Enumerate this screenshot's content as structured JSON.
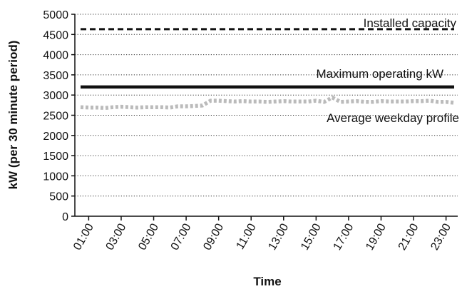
{
  "chart_data": {
    "type": "line",
    "title": "",
    "xlabel": "Time",
    "ylabel": "kW (per 30 minute period)",
    "ylim": [
      0,
      5000
    ],
    "yticks": [
      0,
      500,
      1000,
      1500,
      2000,
      2500,
      3000,
      3500,
      4000,
      4500,
      5000
    ],
    "xticks": [
      "01:00",
      "03:00",
      "05:00",
      "07:00",
      "09:00",
      "11:00",
      "13:00",
      "15:00",
      "17:00",
      "19:00",
      "21:00",
      "23:00"
    ],
    "x": [
      "00:30",
      "01:00",
      "01:30",
      "02:00",
      "02:30",
      "03:00",
      "03:30",
      "04:00",
      "04:30",
      "05:00",
      "05:30",
      "06:00",
      "06:30",
      "07:00",
      "07:30",
      "08:00",
      "08:30",
      "09:00",
      "09:30",
      "10:00",
      "10:30",
      "11:00",
      "11:30",
      "12:00",
      "12:30",
      "13:00",
      "13:30",
      "14:00",
      "14:30",
      "15:00",
      "15:30",
      "16:00",
      "16:30",
      "17:00",
      "17:30",
      "18:00",
      "18:30",
      "19:00",
      "19:30",
      "20:00",
      "20:30",
      "21:00",
      "21:30",
      "22:00",
      "22:30",
      "23:00",
      "23:30"
    ],
    "grid": "horizontal-dotted",
    "series": [
      {
        "name": "Installed capacity",
        "style": "dashed",
        "color": "#111111",
        "values": [
          4630,
          4630,
          4630,
          4630,
          4630,
          4630,
          4630,
          4630,
          4630,
          4630,
          4630,
          4630,
          4630,
          4630,
          4630,
          4630,
          4630,
          4630,
          4630,
          4630,
          4630,
          4630,
          4630,
          4630,
          4630,
          4630,
          4630,
          4630,
          4630,
          4630,
          4630,
          4630,
          4630,
          4630,
          4630,
          4630,
          4630,
          4630,
          4630,
          4630,
          4630,
          4630,
          4630,
          4630,
          4630,
          4630,
          4630
        ]
      },
      {
        "name": "Maximum operating kW",
        "style": "solid",
        "color": "#111111",
        "values": [
          3200,
          3200,
          3200,
          3200,
          3200,
          3200,
          3200,
          3200,
          3200,
          3200,
          3200,
          3200,
          3200,
          3200,
          3200,
          3200,
          3200,
          3200,
          3200,
          3200,
          3200,
          3200,
          3200,
          3200,
          3200,
          3200,
          3200,
          3200,
          3200,
          3200,
          3200,
          3200,
          3200,
          3200,
          3200,
          3200,
          3200,
          3200,
          3200,
          3200,
          3200,
          3200,
          3200,
          3200,
          3200,
          3200,
          3200
        ]
      },
      {
        "name": "Average weekday profile",
        "style": "dotted",
        "color": "#bbbbbb",
        "values": [
          2700,
          2690,
          2690,
          2680,
          2700,
          2710,
          2700,
          2690,
          2700,
          2700,
          2700,
          2690,
          2720,
          2720,
          2730,
          2740,
          2860,
          2860,
          2850,
          2840,
          2850,
          2840,
          2840,
          2830,
          2840,
          2850,
          2840,
          2840,
          2840,
          2860,
          2830,
          2940,
          2830,
          2840,
          2850,
          2830,
          2830,
          2850,
          2840,
          2840,
          2840,
          2850,
          2850,
          2860,
          2830,
          2830,
          2810
        ]
      }
    ]
  }
}
